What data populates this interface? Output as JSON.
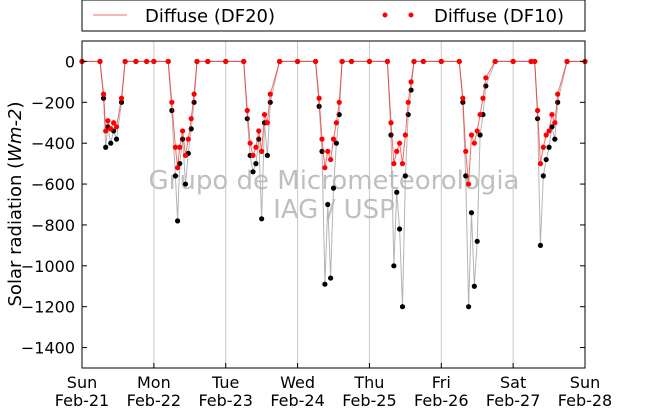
{
  "chart_data": {
    "type": "scatter",
    "title": "",
    "xlabel": "",
    "ylabel_plain": "Solar radiation (",
    "ylabel_math": "Wm-2",
    "ylabel_close": ")",
    "ylim": [
      -1500,
      100
    ],
    "yticks": [
      0,
      -200,
      -400,
      -600,
      -800,
      -1000,
      -1200,
      -1400
    ],
    "xlim": [
      0,
      7
    ],
    "xticks": [
      {
        "x": 0,
        "day": "Sun",
        "date": "Feb-21"
      },
      {
        "x": 1,
        "day": "Mon",
        "date": "Feb-22"
      },
      {
        "x": 2,
        "day": "Tue",
        "date": "Feb-23"
      },
      {
        "x": 3,
        "day": "Wed",
        "date": "Feb-24"
      },
      {
        "x": 4,
        "day": "Thu",
        "date": "Feb-25"
      },
      {
        "x": 5,
        "day": "Fri",
        "date": "Feb-26"
      },
      {
        "x": 6,
        "day": "Sat",
        "date": "Feb-27"
      },
      {
        "x": 7,
        "day": "Sun",
        "date": "Feb-28"
      }
    ],
    "grid": "vertical",
    "legend_position": "above-plot",
    "series": [
      {
        "name": "Diffuse (DF20)",
        "color": "#000000",
        "line_color": "#ff6a6a",
        "x": [
          0.0,
          0.25,
          0.3,
          0.33,
          0.36,
          0.4,
          0.44,
          0.48,
          0.55,
          0.6,
          0.75,
          0.9,
          1.0,
          1.2,
          1.25,
          1.3,
          1.33,
          1.36,
          1.4,
          1.44,
          1.48,
          1.52,
          1.56,
          1.6,
          1.75,
          2.0,
          2.25,
          2.3,
          2.34,
          2.38,
          2.42,
          2.46,
          2.5,
          2.54,
          2.58,
          2.62,
          2.75,
          3.0,
          3.25,
          3.3,
          3.34,
          3.38,
          3.42,
          3.46,
          3.5,
          3.54,
          3.58,
          3.62,
          3.75,
          4.0,
          4.25,
          4.3,
          4.34,
          4.38,
          4.42,
          4.46,
          4.5,
          4.54,
          4.58,
          4.62,
          4.75,
          5.0,
          5.25,
          5.3,
          5.34,
          5.38,
          5.42,
          5.46,
          5.5,
          5.54,
          5.58,
          5.62,
          5.75,
          6.0,
          6.25,
          6.3,
          6.34,
          6.38,
          6.42,
          6.46,
          6.5,
          6.54,
          6.58,
          6.62,
          6.75,
          7.0
        ],
        "values": [
          0,
          0,
          -180,
          -420,
          -320,
          -400,
          -340,
          -380,
          -200,
          0,
          0,
          0,
          0,
          0,
          -240,
          -560,
          -780,
          -500,
          -380,
          -600,
          -450,
          -330,
          -200,
          0,
          0,
          0,
          0,
          -280,
          -460,
          -540,
          -500,
          -380,
          -770,
          -300,
          -460,
          -200,
          0,
          0,
          0,
          -220,
          -440,
          -1090,
          -700,
          -1060,
          -620,
          -400,
          -260,
          0,
          0,
          0,
          0,
          -360,
          -1000,
          -640,
          -820,
          -1200,
          -560,
          -260,
          -140,
          0,
          0,
          0,
          0,
          -200,
          -560,
          -1200,
          -740,
          -1100,
          -880,
          -360,
          -260,
          -120,
          0,
          0,
          0,
          0,
          -280,
          -900,
          -560,
          -480,
          -420,
          -320,
          -380,
          -200,
          0,
          0
        ]
      },
      {
        "name": "Diffuse (DF10)",
        "color": "#ff0000",
        "x": [
          0.0,
          0.25,
          0.3,
          0.33,
          0.36,
          0.4,
          0.44,
          0.48,
          0.55,
          0.6,
          0.75,
          0.9,
          1.0,
          1.2,
          1.25,
          1.3,
          1.33,
          1.36,
          1.4,
          1.44,
          1.48,
          1.52,
          1.56,
          1.6,
          1.75,
          2.0,
          2.25,
          2.3,
          2.34,
          2.38,
          2.42,
          2.46,
          2.5,
          2.54,
          2.58,
          2.62,
          2.75,
          3.0,
          3.25,
          3.3,
          3.34,
          3.38,
          3.42,
          3.46,
          3.5,
          3.54,
          3.58,
          3.62,
          3.75,
          4.0,
          4.25,
          4.3,
          4.34,
          4.38,
          4.42,
          4.46,
          4.5,
          4.54,
          4.58,
          4.62,
          4.75,
          5.0,
          5.25,
          5.3,
          5.34,
          5.38,
          5.42,
          5.46,
          5.5,
          5.54,
          5.58,
          5.62,
          5.75,
          6.0,
          6.25,
          6.3,
          6.34,
          6.38,
          6.42,
          6.46,
          6.5,
          6.54,
          6.58,
          6.62,
          6.75,
          7.0
        ],
        "values": [
          0,
          0,
          -160,
          -340,
          -290,
          -330,
          -300,
          -320,
          -180,
          0,
          0,
          0,
          0,
          0,
          -200,
          -420,
          -520,
          -420,
          -340,
          -460,
          -380,
          -280,
          -160,
          0,
          0,
          0,
          0,
          -240,
          -400,
          -460,
          -420,
          -340,
          -440,
          -260,
          -300,
          -160,
          0,
          0,
          0,
          -180,
          -380,
          -520,
          -440,
          -480,
          -380,
          -300,
          -200,
          0,
          0,
          0,
          0,
          -300,
          -500,
          -440,
          -400,
          -500,
          -360,
          -200,
          -100,
          0,
          0,
          0,
          0,
          -180,
          -440,
          -600,
          -360,
          -400,
          -340,
          -260,
          -180,
          -80,
          0,
          0,
          0,
          0,
          -240,
          -500,
          -420,
          -360,
          -340,
          -260,
          -300,
          -160,
          0,
          0
        ]
      }
    ],
    "watermark": {
      "line1": "Grupo de Micrometeorologia",
      "line2": "IAG / USP"
    }
  },
  "colors": {
    "grid": "#c8c8c8",
    "connector": "#b4b4b4",
    "frame": "#000000"
  }
}
